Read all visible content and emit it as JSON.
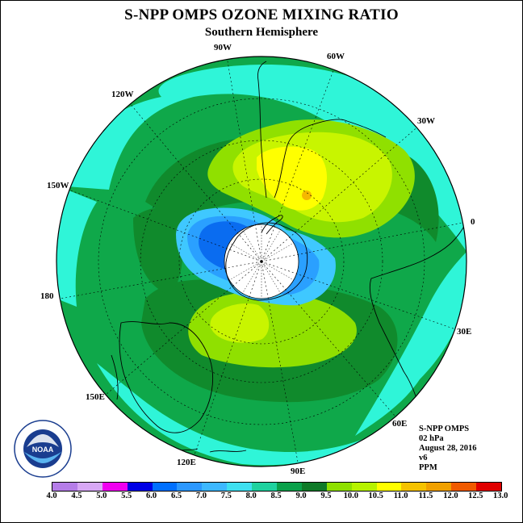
{
  "title": "S-NPP OMPS OZONE MIXING RATIO",
  "subtitle": "Southern Hemisphere",
  "map_labels": {
    "lon_90w": "90W",
    "lon_60w": "60W",
    "lon_120w": "120W",
    "lon_30w": "30W",
    "lon_150w": "150W",
    "lon_0": "0",
    "lon_180": "180",
    "lon_30e": "30E",
    "lon_150e": "150E",
    "lon_60e": "60E",
    "lon_120e": "120E",
    "lon_90e": "90E"
  },
  "info": {
    "instrument": "S-NPP OMPS",
    "level": "02 hPa",
    "date": "August 28, 2016",
    "version": "v6",
    "units": "PPM"
  },
  "logo": {
    "text": "NOAA",
    "ring_text": "NATIONAL OCEANIC AND ATMOSPHERIC ADMINISTRATION U.S. DEPARTMENT OF COMMERCE"
  },
  "colorbar": {
    "ticks": [
      "4.0",
      "4.5",
      "5.0",
      "5.5",
      "6.0",
      "6.5",
      "7.0",
      "7.5",
      "8.0",
      "8.5",
      "9.0",
      "9.5",
      "10.0",
      "10.5",
      "11.0",
      "11.5",
      "12.0",
      "12.5",
      "13.0"
    ],
    "colors": [
      "#b57de8",
      "#d8a8f5",
      "#f000f0",
      "#0000e6",
      "#0070ff",
      "#2b98ff",
      "#3db8ff",
      "#3fe0f0",
      "#1fd29f",
      "#0aa04a",
      "#0f7a28",
      "#8ee000",
      "#b6f200",
      "#ffff00",
      "#f5c200",
      "#f0a000",
      "#f05a00",
      "#e00000",
      "#8b5a3c"
    ]
  },
  "map_colors": {
    "ppm_7_5_8_0": "#2ff5d8",
    "ppm_8_0_8_5": "#0fa84a",
    "ppm_8_5_9_0": "#108a2c",
    "ppm_9_0_9_5": "#90e000",
    "ppm_9_5_10_0": "#c8f500",
    "ppm_10_0_10_5": "#ffff00",
    "ppm_10_5_11_0": "#f5b800",
    "ppm_7_0_7_5": "#3fc8ff",
    "ppm_6_5_7_0": "#2aa0ff",
    "ppm_6_0_6_5": "#0a6cf0",
    "pole_mask": "#ffffff"
  }
}
